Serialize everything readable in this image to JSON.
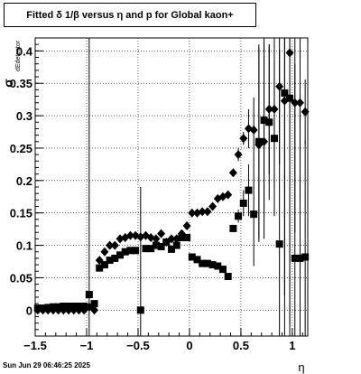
{
  "chart_data": {
    "type": "scatter",
    "title": "Fitted δ 1/β  versus η and p for Global kaon+",
    "xlabel": "η",
    "ylabel": "σ",
    "ylabel_sub": "dEdetector",
    "xlim": [
      -1.5,
      1.15
    ],
    "ylim": [
      -0.04,
      0.42
    ],
    "grid": true,
    "x_ticks": [
      {
        "value": -1.5,
        "label": "−1.5"
      },
      {
        "value": -1.0,
        "label": "−1"
      },
      {
        "value": -0.5,
        "label": "−0.5"
      },
      {
        "value": 0,
        "label": "0"
      },
      {
        "value": 0.5,
        "label": "0.5"
      },
      {
        "value": 1.0,
        "label": "1"
      }
    ],
    "y_ticks": [
      {
        "value": 0,
        "label": "0"
      },
      {
        "value": 0.05,
        "label": "0.05"
      },
      {
        "value": 0.1,
        "label": "0.1"
      },
      {
        "value": 0.15,
        "label": "0.15"
      },
      {
        "value": 0.2,
        "label": "0.2"
      },
      {
        "value": 0.25,
        "label": "0.25"
      },
      {
        "value": 0.3,
        "label": "0.3"
      },
      {
        "value": 0.35,
        "label": "0.35"
      },
      {
        "value": 0.4,
        "label": "0.4"
      }
    ],
    "series": [
      {
        "marker": "diamond",
        "color": "#000000",
        "points": [
          {
            "x": -1.475,
            "y": 0.0
          },
          {
            "x": -1.425,
            "y": 0.0
          },
          {
            "x": -1.375,
            "y": 0.0
          },
          {
            "x": -1.325,
            "y": 0.0
          },
          {
            "x": -1.275,
            "y": 0.0
          },
          {
            "x": -1.225,
            "y": 0.0
          },
          {
            "x": -1.175,
            "y": 0.0
          },
          {
            "x": -1.125,
            "y": 0.0
          },
          {
            "x": -1.075,
            "y": 0.0
          },
          {
            "x": -1.025,
            "y": 0.0
          },
          {
            "x": -0.975,
            "y": 0.005,
            "err": 0.42
          },
          {
            "x": -0.925,
            "y": 0.0
          },
          {
            "x": -0.875,
            "y": 0.077
          },
          {
            "x": -0.825,
            "y": 0.09
          },
          {
            "x": -0.775,
            "y": 0.1
          },
          {
            "x": -0.725,
            "y": 0.1
          },
          {
            "x": -0.675,
            "y": 0.11
          },
          {
            "x": -0.625,
            "y": 0.112
          },
          {
            "x": -0.575,
            "y": 0.115
          },
          {
            "x": -0.525,
            "y": 0.115
          },
          {
            "x": -0.475,
            "y": 0.113
          },
          {
            "x": -0.425,
            "y": 0.115
          },
          {
            "x": -0.375,
            "y": 0.112
          },
          {
            "x": -0.325,
            "y": 0.11
          },
          {
            "x": -0.275,
            "y": 0.118
          },
          {
            "x": -0.225,
            "y": 0.105
          },
          {
            "x": -0.175,
            "y": 0.11
          },
          {
            "x": -0.125,
            "y": 0.11
          },
          {
            "x": -0.075,
            "y": 0.118
          },
          {
            "x": -0.025,
            "y": 0.13
          },
          {
            "x": 0.025,
            "y": 0.15
          },
          {
            "x": 0.075,
            "y": 0.15
          },
          {
            "x": 0.125,
            "y": 0.152
          },
          {
            "x": 0.175,
            "y": 0.152
          },
          {
            "x": 0.225,
            "y": 0.16
          },
          {
            "x": 0.275,
            "y": 0.172
          },
          {
            "x": 0.325,
            "y": 0.175
          },
          {
            "x": 0.375,
            "y": 0.178
          },
          {
            "x": 0.425,
            "y": 0.212
          },
          {
            "x": 0.475,
            "y": 0.24,
            "err": 0.01
          },
          {
            "x": 0.525,
            "y": 0.265,
            "err": 0.01
          },
          {
            "x": 0.575,
            "y": 0.28,
            "err": 0.03
          },
          {
            "x": 0.625,
            "y": 0.278,
            "err": 0.05
          },
          {
            "x": 0.675,
            "y": 0.255,
            "err": 0.15
          },
          {
            "x": 0.725,
            "y": 0.26,
            "err": 0.15
          },
          {
            "x": 0.775,
            "y": 0.31,
            "err": 0.1
          },
          {
            "x": 0.825,
            "y": 0.31,
            "err": 0.12
          },
          {
            "x": 0.875,
            "y": 0.345,
            "err": 0.12
          },
          {
            "x": 0.925,
            "y": 0.323,
            "err": 0.3
          },
          {
            "x": 0.975,
            "y": 0.397,
            "err": 0.42
          },
          {
            "x": 1.025,
            "y": 0.32,
            "err": 0.2
          },
          {
            "x": 1.075,
            "y": 0.32,
            "err": 0.15
          },
          {
            "x": 1.125,
            "y": 0.306,
            "err": 0.05
          }
        ]
      },
      {
        "marker": "square",
        "color": "#000000",
        "points": [
          {
            "x": -1.475,
            "y": 0.003
          },
          {
            "x": -1.425,
            "y": 0.003
          },
          {
            "x": -1.375,
            "y": 0.004
          },
          {
            "x": -1.325,
            "y": 0.005
          },
          {
            "x": -1.275,
            "y": 0.005
          },
          {
            "x": -1.225,
            "y": 0.006
          },
          {
            "x": -1.175,
            "y": 0.006
          },
          {
            "x": -1.125,
            "y": 0.006
          },
          {
            "x": -1.075,
            "y": 0.006
          },
          {
            "x": -1.025,
            "y": 0.006
          },
          {
            "x": -0.975,
            "y": 0.024,
            "err": 0.005
          },
          {
            "x": -0.925,
            "y": 0.01
          },
          {
            "x": -0.875,
            "y": 0.065
          },
          {
            "x": -0.825,
            "y": 0.07
          },
          {
            "x": -0.775,
            "y": 0.077
          },
          {
            "x": -0.725,
            "y": 0.08
          },
          {
            "x": -0.675,
            "y": 0.085
          },
          {
            "x": -0.625,
            "y": 0.09
          },
          {
            "x": -0.575,
            "y": 0.092
          },
          {
            "x": -0.525,
            "y": 0.092
          },
          {
            "x": -0.475,
            "y": 0.0,
            "err": 0.19
          },
          {
            "x": -0.425,
            "y": 0.095
          },
          {
            "x": -0.375,
            "y": 0.095
          },
          {
            "x": -0.325,
            "y": 0.1
          },
          {
            "x": -0.275,
            "y": 0.098
          },
          {
            "x": -0.225,
            "y": 0.105
          },
          {
            "x": -0.175,
            "y": 0.094
          },
          {
            "x": -0.125,
            "y": 0.1
          },
          {
            "x": -0.075,
            "y": 0.112
          },
          {
            "x": -0.025,
            "y": 0.112
          },
          {
            "x": 0.025,
            "y": 0.082
          },
          {
            "x": 0.075,
            "y": 0.078
          },
          {
            "x": 0.125,
            "y": 0.072
          },
          {
            "x": 0.175,
            "y": 0.072
          },
          {
            "x": 0.225,
            "y": 0.07
          },
          {
            "x": 0.275,
            "y": 0.068
          },
          {
            "x": 0.325,
            "y": 0.063
          },
          {
            "x": 0.375,
            "y": 0.052
          },
          {
            "x": 0.425,
            "y": 0.126,
            "err": 0.005
          },
          {
            "x": 0.475,
            "y": 0.145,
            "err": 0.01
          },
          {
            "x": 0.525,
            "y": 0.165,
            "err": 0.02
          },
          {
            "x": 0.575,
            "y": 0.185,
            "err": 0.04
          },
          {
            "x": 0.625,
            "y": 0.148,
            "err": 0.08
          },
          {
            "x": 0.675,
            "y": 0.26,
            "err": 0.15
          },
          {
            "x": 0.725,
            "y": 0.293,
            "err": 0.15
          },
          {
            "x": 0.775,
            "y": 0.29,
            "err": 0.12
          },
          {
            "x": 0.825,
            "y": 0.265,
            "err": 0.12
          },
          {
            "x": 0.875,
            "y": 0.102,
            "err": 0.3
          },
          {
            "x": 0.925,
            "y": 0.335,
            "err": 0.4
          },
          {
            "x": 0.975,
            "y": 0.327,
            "err": 0.42
          },
          {
            "x": 1.025,
            "y": 0.08,
            "err": 0.3
          },
          {
            "x": 1.075,
            "y": 0.08,
            "err": 0.25
          },
          {
            "x": 1.125,
            "y": 0.082,
            "err": 0.18
          }
        ]
      }
    ]
  },
  "footer": {
    "timestamp": "Sun Jun 29 06:46:25 2025"
  }
}
